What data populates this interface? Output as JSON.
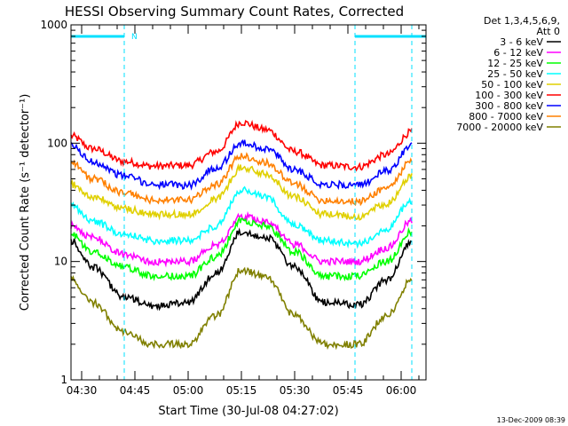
{
  "chart_data": {
    "type": "line",
    "title": "HESSI Observing Summary Count Rates, Corrected",
    "xlabel": "Start Time (30-Jul-08 04:27:02)",
    "ylabel": "Corrected Count Rate (s⁻¹ detector⁻¹)",
    "yscale": "log",
    "ylim": [
      1,
      1000
    ],
    "y_ticks": [
      "1",
      "10",
      "100",
      "1000"
    ],
    "x_ticks": [
      "04:30",
      "04:45",
      "05:00",
      "05:15",
      "05:30",
      "05:45",
      "06:00"
    ],
    "x_tick_minutes": [
      0,
      15,
      30,
      45,
      60,
      75,
      90
    ],
    "xlim_minutes": [
      -3,
      97
    ],
    "legend": {
      "position": "top-right",
      "header": [
        "Det 1,3,4,5,6,9,",
        "Att 0"
      ],
      "entries": [
        {
          "name": "3 - 6 keV",
          "color": "#000000"
        },
        {
          "name": "6 - 12 keV",
          "color": "#ff00ff"
        },
        {
          "name": "12 - 25 keV",
          "color": "#00ff00"
        },
        {
          "name": "25 - 50 keV",
          "color": "#00ffff"
        },
        {
          "name": "50 - 100 keV",
          "color": "#e0d000"
        },
        {
          "name": "100 - 300 keV",
          "color": "#ff0000"
        },
        {
          "name": "300 - 800 keV",
          "color": "#0000ff"
        },
        {
          "name": "800 - 7000 keV",
          "color": "#ff8000"
        },
        {
          "name": "7000 - 20000 keV",
          "color": "#808000"
        }
      ]
    },
    "night_intervals_minutes": [
      [
        -3,
        12
      ],
      [
        77,
        97
      ]
    ],
    "night_label": "N",
    "dashed_markers_minutes": [
      12,
      77,
      93
    ],
    "series": [
      {
        "name": "100 - 300 keV",
        "color": "#ff0000",
        "x": [
          -3,
          3,
          12,
          20,
          30,
          38,
          45,
          52,
          60,
          68,
          78,
          86,
          93
        ],
        "y": [
          115,
          90,
          70,
          64,
          65,
          85,
          150,
          130,
          85,
          65,
          63,
          80,
          125
        ]
      },
      {
        "name": "300 - 800 keV",
        "color": "#0000ff",
        "x": [
          -3,
          3,
          12,
          20,
          30,
          38,
          45,
          52,
          60,
          68,
          78,
          86,
          93
        ],
        "y": [
          95,
          70,
          53,
          45,
          44,
          62,
          100,
          90,
          60,
          45,
          44,
          58,
          95
        ]
      },
      {
        "name": "800 - 7000 keV",
        "color": "#ff8000",
        "x": [
          -3,
          3,
          12,
          20,
          30,
          38,
          45,
          52,
          60,
          68,
          78,
          86,
          93
        ],
        "y": [
          70,
          50,
          38,
          33,
          33,
          45,
          78,
          68,
          45,
          33,
          32,
          42,
          70
        ]
      },
      {
        "name": "50 - 100 keV",
        "color": "#e0d000",
        "x": [
          -3,
          3,
          12,
          20,
          30,
          38,
          45,
          52,
          60,
          68,
          78,
          86,
          93
        ],
        "y": [
          45,
          35,
          28,
          25,
          25,
          34,
          62,
          55,
          35,
          25,
          24,
          31,
          52
        ]
      },
      {
        "name": "25 - 50 keV",
        "color": "#00ffff",
        "x": [
          -3,
          3,
          12,
          20,
          30,
          38,
          45,
          52,
          60,
          68,
          78,
          86,
          93
        ],
        "y": [
          30,
          22,
          17,
          15,
          15,
          20,
          40,
          35,
          20,
          15,
          14,
          19,
          33
        ]
      },
      {
        "name": "6 - 12 keV",
        "color": "#ff00ff",
        "x": [
          -3,
          3,
          12,
          20,
          30,
          38,
          45,
          52,
          60,
          68,
          78,
          86,
          93
        ],
        "y": [
          20,
          16,
          11.5,
          10,
          10,
          14,
          24,
          22,
          14,
          10,
          10,
          13,
          22
        ]
      },
      {
        "name": "12 - 25 keV",
        "color": "#00ff00",
        "x": [
          -3,
          3,
          12,
          20,
          30,
          38,
          45,
          52,
          60,
          68,
          78,
          86,
          93
        ],
        "y": [
          17,
          12,
          9,
          7.5,
          7.5,
          11,
          22,
          20,
          12,
          7.5,
          7.5,
          10,
          18
        ]
      },
      {
        "name": "3 - 6 keV",
        "color": "#000000",
        "x": [
          -3,
          3,
          12,
          20,
          30,
          38,
          45,
          52,
          60,
          68,
          78,
          86,
          93
        ],
        "y": [
          15,
          9,
          5,
          4.2,
          4.5,
          8,
          18,
          16,
          9,
          4.5,
          4.3,
          7,
          15
        ]
      },
      {
        "name": "7000 - 20000 keV",
        "color": "#808000",
        "x": [
          -3,
          3,
          12,
          20,
          30,
          38,
          45,
          52,
          60,
          68,
          78,
          86,
          93
        ],
        "y": [
          7,
          4.5,
          2.5,
          2,
          2,
          3.5,
          8.5,
          7.5,
          3.5,
          2,
          2,
          3.5,
          7
        ]
      }
    ]
  },
  "footer_timestamp": "13-Dec-2009 08:39"
}
